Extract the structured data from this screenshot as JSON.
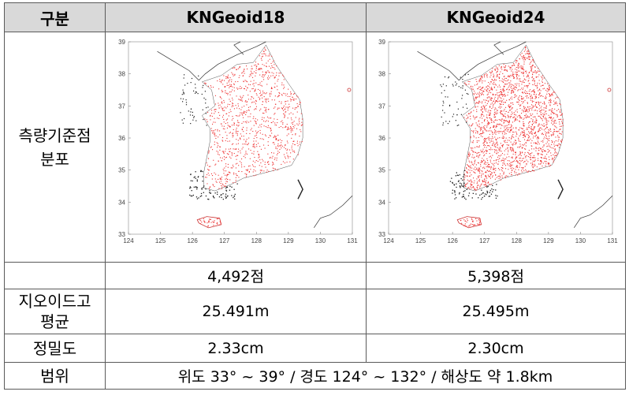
{
  "header": {
    "col0": "구분",
    "col1": "KNGeoid18",
    "col2": "KNGeoid24"
  },
  "rows": {
    "distribution": {
      "label_line1": "측량기준점",
      "label_line2": "분포",
      "map": {
        "x_ticks": [
          "124",
          "125",
          "126",
          "127",
          "128",
          "129",
          "130",
          "131"
        ],
        "y_ticks": [
          "33",
          "34",
          "35",
          "36",
          "37",
          "38",
          "39"
        ],
        "point_color": "#ee3333"
      }
    },
    "counts": {
      "k18": "4,492점",
      "k24": "5,398점"
    },
    "avg_height": {
      "label_line1": "지오이드고",
      "label_line2": "평균",
      "k18": "25.491m",
      "k24": "25.495m"
    },
    "precision": {
      "label": "정밀도",
      "k18": "2.33cm",
      "k24": "2.30cm"
    },
    "range": {
      "label": "범위",
      "value": "위도 33° ~ 39° / 경도 124° ~ 132° / 해상도 약 1.8km"
    }
  }
}
